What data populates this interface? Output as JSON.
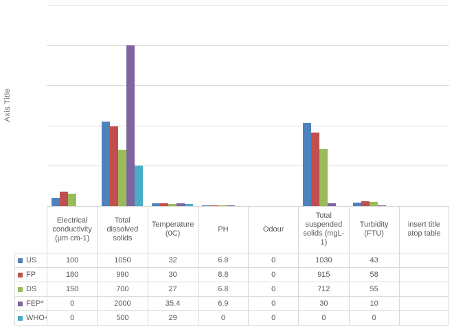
{
  "chart": {
    "axis_title": "Axis Title",
    "background": "#ffffff",
    "gridline_color": "#dcdcdc",
    "axis_line_color": "#d6d6d6",
    "text_color": "#595959"
  },
  "chart_data": {
    "type": "bar",
    "title": "",
    "xlabel": "",
    "ylabel": "Axis Title",
    "ylim": [
      0,
      2500
    ],
    "gridline_step": 500,
    "grid": true,
    "legend_position": "left-of-data-table",
    "categories": [
      "Electrical conductivity (μm cm-1)",
      "Total dissolved solids",
      "Temperature (0C)",
      "PH",
      "Odour",
      "Total suspended solids (mgL-1)",
      "Turbidity (FTU)",
      "insert title atop table"
    ],
    "series": [
      {
        "name": "US",
        "color": "#4F81BD",
        "values": [
          100,
          1050,
          32,
          6.8,
          0,
          1030,
          43,
          null
        ]
      },
      {
        "name": "FP",
        "color": "#C0504D",
        "values": [
          180,
          990,
          30,
          8.8,
          0,
          915,
          58,
          null
        ]
      },
      {
        "name": "DS",
        "color": "#9BBB59",
        "values": [
          150,
          700,
          27,
          6.8,
          0,
          712,
          55,
          null
        ]
      },
      {
        "name": "FEP*",
        "color": "#8064A2",
        "values": [
          0,
          2000,
          35.4,
          6.9,
          0,
          30,
          10,
          null
        ]
      },
      {
        "name": "WHO+",
        "color": "#4BACC6",
        "values": [
          0,
          500,
          29,
          0,
          0,
          0,
          0,
          null
        ]
      }
    ]
  },
  "data_table": {
    "shown": true,
    "corner_label": "",
    "border_color": "#d9d9d9"
  }
}
